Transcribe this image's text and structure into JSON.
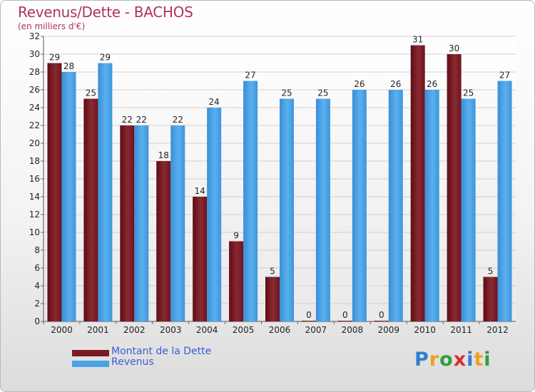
{
  "chart_data": {
    "type": "bar",
    "title": "Revenus/Dette - BACHOS",
    "subtitle": "(en milliers d'€)",
    "categories": [
      "2000",
      "2001",
      "2002",
      "2003",
      "2004",
      "2005",
      "2006",
      "2007",
      "2008",
      "2009",
      "2010",
      "2011",
      "2012"
    ],
    "series": [
      {
        "name": "Montant de la Dette",
        "color": "#7a1a24",
        "values": [
          29,
          25,
          22,
          18,
          14,
          9,
          5,
          0,
          0,
          0,
          31,
          30,
          5
        ]
      },
      {
        "name": "Revenus",
        "color": "#4aa3e6",
        "values": [
          28,
          29,
          22,
          22,
          24,
          27,
          25,
          25,
          26,
          26,
          26,
          25,
          27
        ]
      }
    ],
    "ylim": [
      0,
      32
    ],
    "yticks": [
      0,
      2,
      4,
      6,
      8,
      10,
      12,
      14,
      16,
      18,
      20,
      22,
      24,
      26,
      28,
      30,
      32
    ],
    "grid": true,
    "legend": "bottom-left"
  },
  "logo": {
    "letters": [
      "P",
      "r",
      "o",
      "x",
      "i",
      "t",
      "i"
    ],
    "colors": [
      "#2e7fcf",
      "#f0a020",
      "#2e9e3e",
      "#d63030",
      "#2e7fcf",
      "#f0a020",
      "#2e9e3e"
    ]
  }
}
